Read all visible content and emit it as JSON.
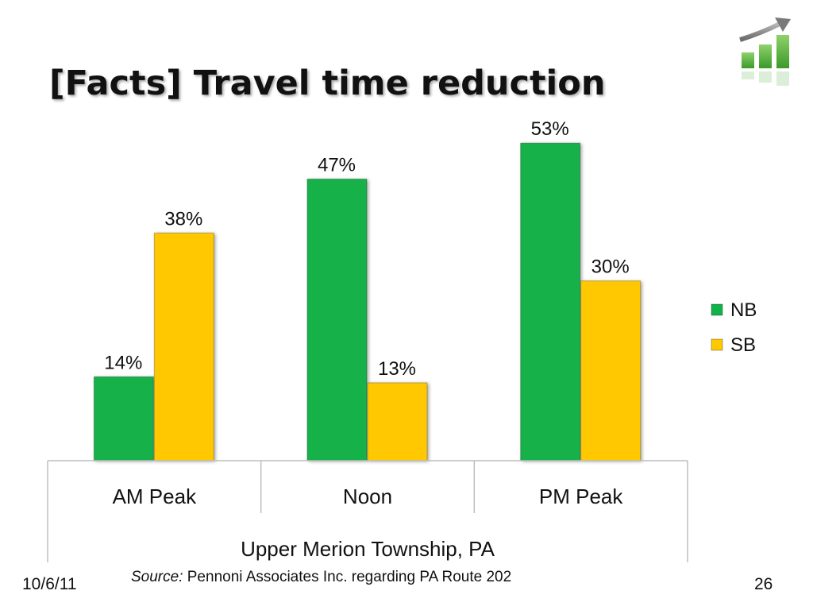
{
  "slide": {
    "title": "[Facts] Travel time reduction",
    "date": "10/6/11",
    "page_number": "26",
    "source_label": "Source:",
    "source_text": " Pennoni Associates Inc. regarding PA Route 202",
    "logo_icon": "growth-bar-chart-icon"
  },
  "chart_data": {
    "type": "bar",
    "title": "",
    "categories": [
      "AM Peak",
      "Noon",
      "PM Peak"
    ],
    "group_label": "Upper Merion Township, PA",
    "series": [
      {
        "name": "NB",
        "values": [
          14,
          47,
          53
        ],
        "labels": [
          "14%",
          "47%",
          "53%"
        ],
        "color": "#12b24a"
      },
      {
        "name": "SB",
        "values": [
          38,
          13,
          30
        ],
        "labels": [
          "38%",
          "13%",
          "30%"
        ],
        "color": "#ffc800"
      }
    ],
    "ylim": [
      0,
      57
    ],
    "grid": false,
    "legend_position": "right"
  }
}
